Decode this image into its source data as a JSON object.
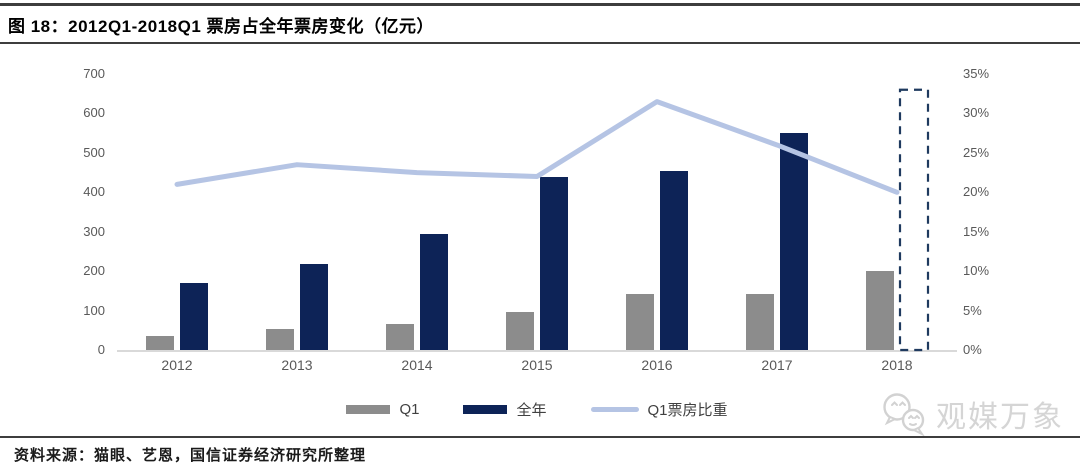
{
  "figure": {
    "title": "图 18：2012Q1-2018Q1 票房占全年票房变化（亿元）",
    "source": "资料来源：猫眼、艺恩，国信证券经济研究所整理",
    "watermark": "观媒万象"
  },
  "colors": {
    "q1_bar": "#8c8c8c",
    "full_year_bar": "#0d2357",
    "ratio_line": "#b5c4e4",
    "dashed_outline": "#1f3a5f",
    "axis_text": "#595959",
    "baseline": "#d9d9d9"
  },
  "chart_data": {
    "type": "bar+line combo",
    "title": "2012Q1-2018Q1 票房占全年票房变化（亿元）",
    "categories": [
      "2012",
      "2013",
      "2014",
      "2015",
      "2016",
      "2017",
      "2018"
    ],
    "series": [
      {
        "name": "Q1",
        "type": "bar",
        "axis": "left",
        "color": "#8c8c8c",
        "values": [
          35,
          52,
          67,
          96,
          143,
          143,
          200
        ]
      },
      {
        "name": "全年",
        "type": "bar",
        "axis": "left",
        "color": "#0d2357",
        "values": [
          170,
          218,
          295,
          440,
          455,
          550,
          null
        ]
      },
      {
        "name": "Q1票房比重",
        "type": "line",
        "axis": "right",
        "color": "#b5c4e4",
        "values": [
          21,
          23.5,
          22.5,
          22,
          31.5,
          26,
          20
        ]
      }
    ],
    "forecast_outline_bar": {
      "category": "2018",
      "value": 660,
      "style": "dashed",
      "color": "#1f3a5f"
    },
    "left_axis": {
      "ticks": [
        0,
        100,
        200,
        300,
        400,
        500,
        600,
        700
      ],
      "range": [
        0,
        700
      ]
    },
    "right_axis": {
      "ticks": [
        "0%",
        "5%",
        "10%",
        "15%",
        "20%",
        "25%",
        "30%",
        "35%"
      ],
      "range_pct": [
        0,
        35
      ]
    },
    "legend_position": "bottom",
    "grid": "off"
  }
}
